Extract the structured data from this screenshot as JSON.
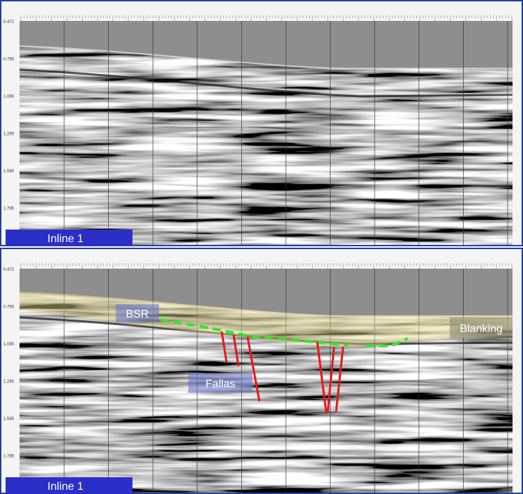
{
  "panels": [
    {
      "label": "Inline 1",
      "depth_ticks": [
        "0.472",
        "0.795",
        "1.095",
        "1.295",
        "1.595",
        "1.795"
      ]
    },
    {
      "label": "Inline 1",
      "depth_ticks": [
        "0.472",
        "0.795",
        "1.095",
        "1.295",
        "1.595",
        "1.795"
      ]
    }
  ],
  "annotations": {
    "bsr": "BSR",
    "fallas": "Fallas",
    "blanking": "Blanking"
  }
}
